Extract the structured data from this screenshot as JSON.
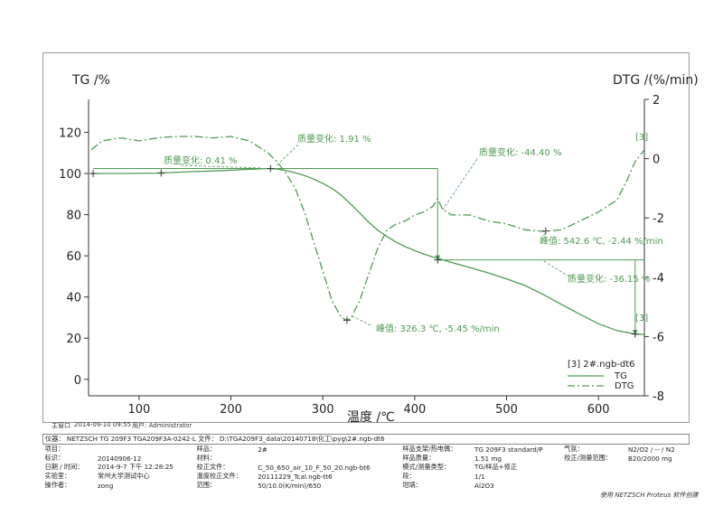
{
  "chart_data": {
    "type": "line",
    "xlabel": "温度 /℃",
    "ylabel_left": "TG /%",
    "ylabel_right": "DTG /(%/min)",
    "xlim": [
      45,
      650
    ],
    "ylim_left": [
      -8,
      136
    ],
    "ylim_right": [
      -8,
      2
    ],
    "x_ticks": [
      100,
      200,
      300,
      400,
      500,
      600
    ],
    "y_ticks_left": [
      0,
      20,
      40,
      60,
      80,
      100,
      120
    ],
    "y_ticks_right": [
      2,
      0,
      -2,
      -4,
      -6,
      -8
    ],
    "grid": false,
    "legend_position": "bottom-right",
    "legend_title": "[3] 2#.ngb-dt6",
    "series": [
      {
        "name": "TG",
        "axis": "left",
        "color": "#4f9a52",
        "style": "solid",
        "x": [
          48,
          80,
          120,
          160,
          200,
          240,
          250,
          260,
          270,
          280,
          290,
          300,
          310,
          320,
          330,
          340,
          350,
          360,
          370,
          380,
          390,
          400,
          410,
          420,
          430,
          440,
          460,
          480,
          500,
          520,
          540,
          560,
          580,
          600,
          620,
          640,
          650
        ],
        "y": [
          100.0,
          100.0,
          100.2,
          100.9,
          101.6,
          102.4,
          102.2,
          101.4,
          100.3,
          99.0,
          97.3,
          95.2,
          92.7,
          89.5,
          85.3,
          80.8,
          76.3,
          72.4,
          69.3,
          66.6,
          64.4,
          62.5,
          60.9,
          59.4,
          58.1,
          56.8,
          54.3,
          51.7,
          48.8,
          45.6,
          41.2,
          36.3,
          31.6,
          27.0,
          23.7,
          22.0,
          21.8
        ]
      },
      {
        "name": "DTG",
        "axis": "right",
        "color": "#4f9a52",
        "style": "dash-dot",
        "x": [
          48,
          60,
          80,
          100,
          120,
          140,
          160,
          180,
          200,
          220,
          240,
          250,
          260,
          270,
          280,
          290,
          300,
          310,
          320,
          326,
          330,
          340,
          350,
          360,
          370,
          380,
          390,
          400,
          410,
          420,
          425,
          430,
          440,
          460,
          480,
          500,
          520,
          540,
          560,
          580,
          600,
          620,
          630,
          640,
          650
        ],
        "y": [
          0.3,
          0.6,
          0.7,
          0.6,
          0.7,
          0.75,
          0.75,
          0.7,
          0.75,
          0.6,
          0.2,
          -0.1,
          -0.5,
          -1.0,
          -1.8,
          -2.8,
          -3.8,
          -4.8,
          -5.35,
          -5.45,
          -5.4,
          -4.8,
          -3.9,
          -3.0,
          -2.4,
          -2.2,
          -2.1,
          -1.9,
          -1.8,
          -1.6,
          -1.35,
          -1.7,
          -1.9,
          -1.9,
          -2.1,
          -2.2,
          -2.4,
          -2.45,
          -2.4,
          -2.1,
          -1.8,
          -1.4,
          -0.8,
          -0.1,
          0.3
        ]
      }
    ],
    "annotations": [
      {
        "text": "质量变化: 0.41 %"
      },
      {
        "text": "质量变化: 1.91 %"
      },
      {
        "text": "质量变化: -44.40 %"
      },
      {
        "text": "质量变化: -36.15 %"
      },
      {
        "text": "峰值: 326.3 ℃, -5.45 %/min"
      },
      {
        "text": "峰值: 542.6 ℃, -2.44 %/min"
      },
      {
        "text": "[3]"
      },
      {
        "text": "[3]"
      }
    ]
  },
  "footer": {
    "main_window": "主窗口",
    "date": "2014-09-10 09:55",
    "user": "用户: Administrator",
    "software_note": "使用 NETZSCH Proteus 软件创建"
  },
  "info": {
    "instrument": "仪器： NETZSCH TG 209F3 TGA209F3A-0242-L  文件： D:\\TGA209F3_data\\20140718\\化工\\pyg\\2#.ngb-dt6",
    "rows": [
      [
        "项目：",
        "",
        "样品：",
        "2#",
        "样品支架/热电偶：",
        "TG 209F3 standard/P",
        "气氛：",
        "N2/O2 / -- / N2"
      ],
      [
        "标识：",
        "20140906-12",
        "材料：",
        "",
        "样品质量：",
        "1.51 mg",
        "校正/测量范围：",
        "B20/2000 mg"
      ],
      [
        "日期 / 时间：",
        "2014-9-7 下午 12:28:25",
        "校正文件：",
        "C_50_650_air_10_F_50_20.ngb-bt6",
        "模式/测量类型：",
        "TG/样品+修正",
        "",
        ""
      ],
      [
        "实验室：",
        "常州大学测试中心",
        "温度校正文件：",
        "20111229_Tcal.ngb-tt6",
        "段：",
        "1/1",
        "",
        ""
      ],
      [
        "操作者：",
        "zong",
        "范围：",
        "50/10.0(K/min)/650",
        "坩埚：",
        "Al2O3",
        "",
        ""
      ]
    ]
  }
}
